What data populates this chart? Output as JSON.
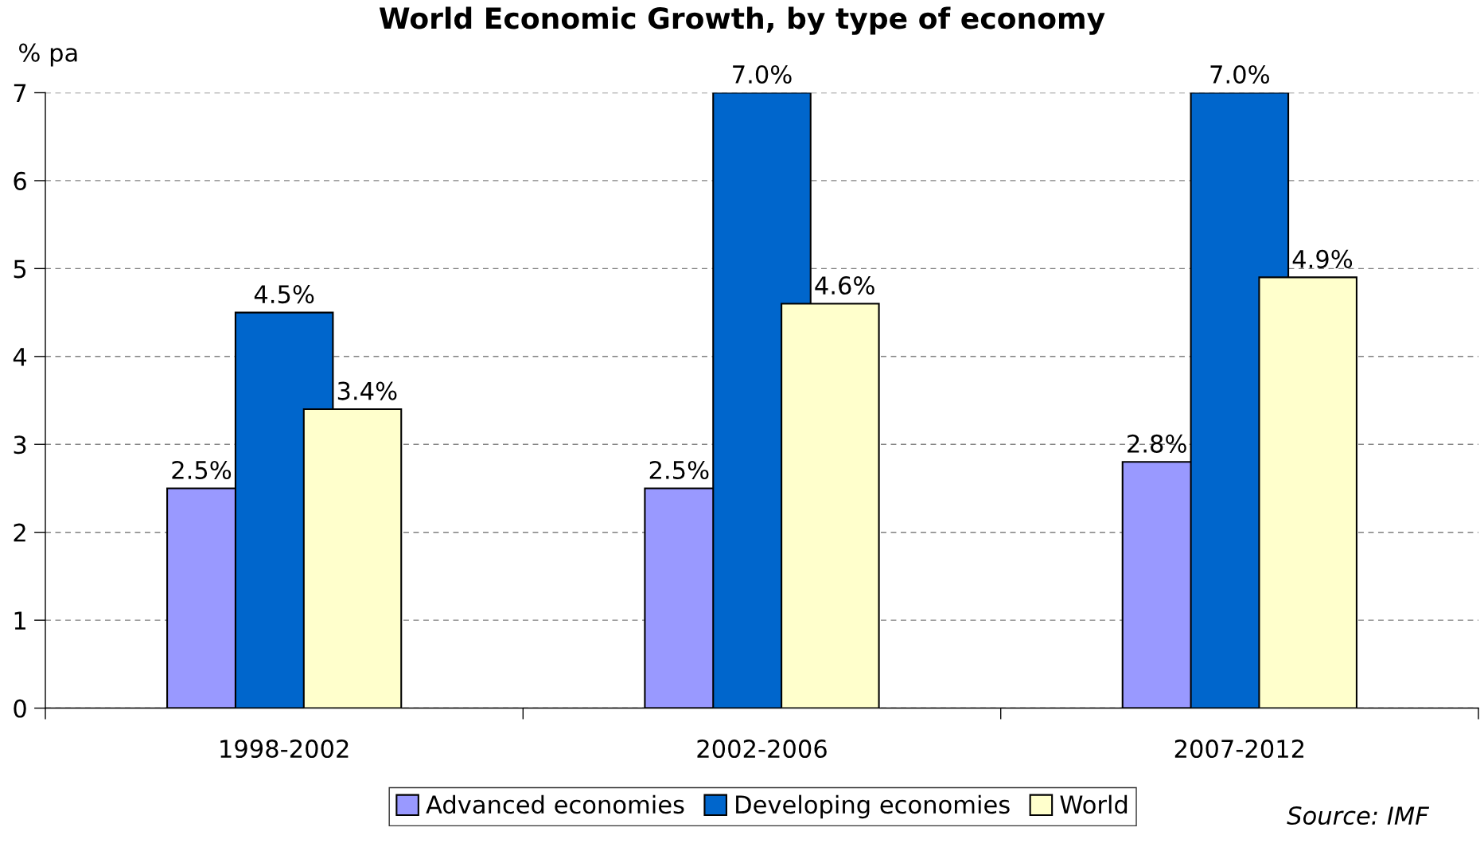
{
  "chart_data": {
    "type": "bar",
    "title": "World Economic Growth, by type of economy",
    "ylabel": "% pa",
    "categories": [
      "1998-2002",
      "2002-2006",
      "2007-2012"
    ],
    "series": [
      {
        "name": "Advanced economies",
        "color": "#9999ff",
        "values": [
          2.5,
          2.5,
          2.8
        ],
        "value_labels": [
          "2.5%",
          "2.5%",
          "2.8%"
        ]
      },
      {
        "name": "Developing economies",
        "color": "#0066cc",
        "values": [
          4.5,
          7.0,
          7.0
        ],
        "value_labels": [
          "4.5%",
          "7.0%",
          "7.0%"
        ]
      },
      {
        "name": "World",
        "color": "#ffffcc",
        "values": [
          3.4,
          4.6,
          4.9
        ],
        "value_labels": [
          "3.4%",
          "4.6%",
          "4.9%"
        ]
      }
    ],
    "ylim": [
      0,
      7
    ],
    "yticks": [
      0,
      1,
      2,
      3,
      4,
      5,
      6,
      7
    ],
    "grid": "y",
    "legend": "bottom",
    "annotations": [
      "Source: IMF"
    ]
  }
}
